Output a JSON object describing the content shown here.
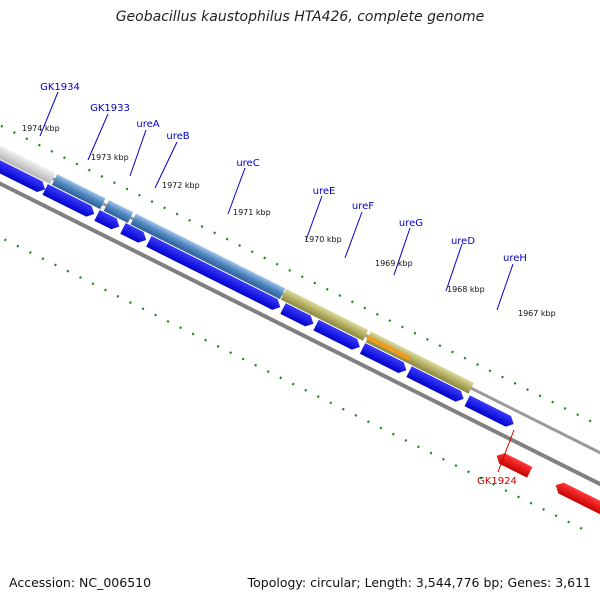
{
  "title": "Geobacillus kaustophilus HTA426, complete genome",
  "footer": {
    "accession": "Accession: NC_006510",
    "summary": "Topology: circular; Length: 3,544,776 bp; Genes: 3,611"
  },
  "colors": {
    "forward_gene": "#0000ee",
    "reverse_gene": "#ee0000",
    "label_blue": "#0000cc",
    "label_red": "#cc0000",
    "tick_green": "#118811",
    "backbone": "#888888",
    "region_gray": "#c8c8c8",
    "region_blue": "#5b8ec4",
    "region_olive": "#b8b46a",
    "region_orange": "#f29a1a"
  },
  "genes": [
    {
      "name": "GK1934",
      "strand": "forward"
    },
    {
      "name": "GK1933",
      "strand": "forward"
    },
    {
      "name": "ureA",
      "strand": "forward"
    },
    {
      "name": "ureB",
      "strand": "forward"
    },
    {
      "name": "ureC",
      "strand": "forward"
    },
    {
      "name": "ureE",
      "strand": "forward"
    },
    {
      "name": "ureF",
      "strand": "forward"
    },
    {
      "name": "ureG",
      "strand": "forward"
    },
    {
      "name": "ureD",
      "strand": "forward"
    },
    {
      "name": "ureH",
      "strand": "forward"
    },
    {
      "name": "GK1924",
      "strand": "reverse"
    }
  ],
  "kbp_markers": [
    "1974 kbp",
    "1973 kbp",
    "1972 kbp",
    "1971 kbp",
    "1970 kbp",
    "1969 kbp",
    "1968 kbp",
    "1967 kbp"
  ]
}
